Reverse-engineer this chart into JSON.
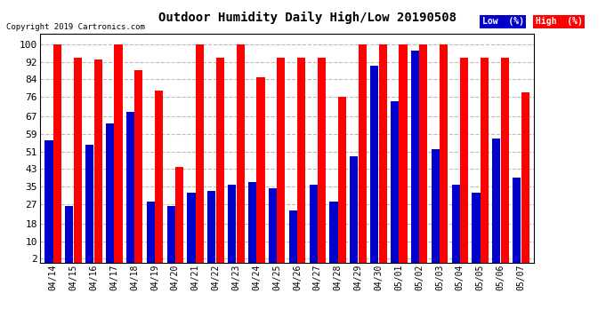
{
  "title": "Outdoor Humidity Daily High/Low 20190508",
  "copyright": "Copyright 2019 Cartronics.com",
  "background_color": "#ffffff",
  "plot_bg_color": "#ffffff",
  "bar_color_high": "#ff0000",
  "bar_color_low": "#0000cd",
  "legend_low_label": "Low  (%)",
  "legend_high_label": "High  (%)",
  "yticks": [
    2,
    10,
    18,
    27,
    35,
    43,
    51,
    59,
    67,
    76,
    84,
    92,
    100
  ],
  "ylim": [
    0,
    105
  ],
  "categories": [
    "04/14",
    "04/15",
    "04/16",
    "04/17",
    "04/18",
    "04/19",
    "04/20",
    "04/21",
    "04/22",
    "04/23",
    "04/24",
    "04/25",
    "04/26",
    "04/27",
    "04/28",
    "04/29",
    "04/30",
    "05/01",
    "05/02",
    "05/03",
    "05/04",
    "05/05",
    "05/06",
    "05/07"
  ],
  "high_values": [
    100,
    94,
    93,
    100,
    88,
    79,
    44,
    100,
    94,
    100,
    85,
    94,
    94,
    94,
    76,
    100,
    100,
    100,
    100,
    100,
    94,
    94,
    94,
    78
  ],
  "low_values": [
    56,
    26,
    54,
    64,
    69,
    28,
    26,
    32,
    33,
    36,
    37,
    34,
    24,
    36,
    28,
    49,
    90,
    74,
    97,
    52,
    36,
    32,
    57,
    39
  ]
}
